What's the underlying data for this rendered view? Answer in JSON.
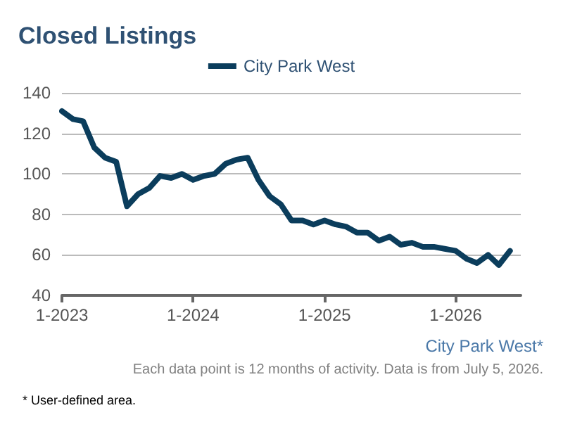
{
  "chart_data": {
    "type": "line",
    "title": "Closed Listings",
    "x": [
      "2023-01",
      "2023-02",
      "2023-03",
      "2023-04",
      "2023-05",
      "2023-06",
      "2023-07",
      "2023-08",
      "2023-09",
      "2023-10",
      "2023-11",
      "2023-12",
      "2024-01",
      "2024-02",
      "2024-03",
      "2024-04",
      "2024-05",
      "2024-06",
      "2024-07",
      "2024-08",
      "2024-09",
      "2024-10",
      "2024-11",
      "2024-12",
      "2025-01",
      "2025-02",
      "2025-03",
      "2025-04",
      "2025-05",
      "2025-06",
      "2025-07",
      "2025-08",
      "2025-09",
      "2025-10",
      "2025-11",
      "2025-12",
      "2026-01",
      "2026-02",
      "2026-03",
      "2026-04",
      "2026-05",
      "2026-06"
    ],
    "series": [
      {
        "name": "City Park West",
        "color": "#0b3d5c",
        "values": [
          131,
          127,
          126,
          113,
          108,
          106,
          84,
          90,
          93,
          99,
          98,
          100,
          97,
          99,
          100,
          105,
          107,
          108,
          97,
          89,
          85,
          77,
          77,
          75,
          77,
          75,
          74,
          71,
          71,
          67,
          69,
          65,
          66,
          64,
          64,
          63,
          62,
          58,
          56,
          60,
          55,
          62
        ]
      }
    ],
    "xlim": [
      "2023-01",
      "2026-07"
    ],
    "xticks": [
      {
        "value": "2023-01",
        "label": "1-2023"
      },
      {
        "value": "2024-01",
        "label": "1-2024"
      },
      {
        "value": "2025-01",
        "label": "1-2025"
      },
      {
        "value": "2026-01",
        "label": "1-2026"
      }
    ],
    "ylim": [
      40,
      140
    ],
    "yticks": [
      40,
      60,
      80,
      100,
      120,
      140
    ],
    "grid": "y",
    "legend": "top",
    "marker": "none",
    "line_style": "solid",
    "annotations": [
      "City Park West*",
      "Each data point is 12 months of activity. Data is from July 5, 2026.",
      "* User-defined area."
    ]
  }
}
